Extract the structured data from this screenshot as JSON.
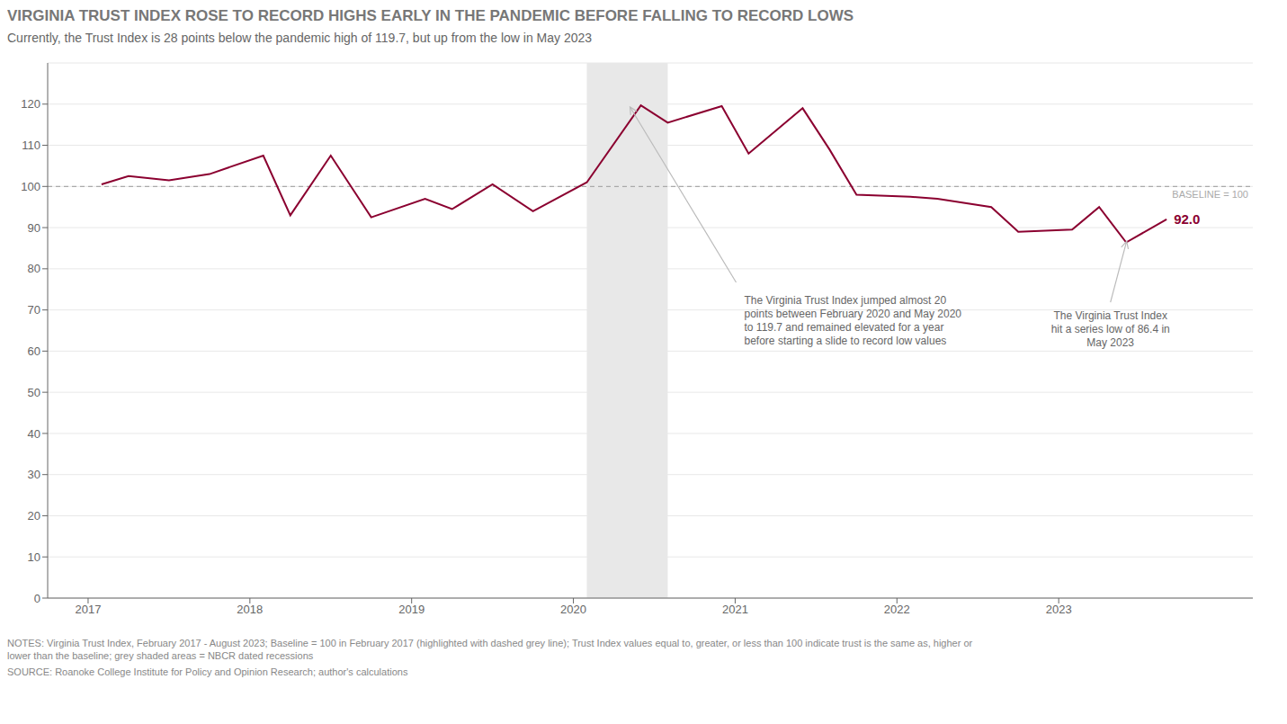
{
  "chart_data": {
    "type": "line",
    "title": "VIRGINIA TRUST INDEX ROSE TO RECORD HIGHS EARLY IN THE PANDEMIC BEFORE FALLING TO RECORD LOWS",
    "subtitle": "Currently, the Trust Index is 28 points below the pandemic high of 119.7, but up from the low in May 2023",
    "x": [
      2017.083,
      2017.25,
      2017.5,
      2017.75,
      2018.083,
      2018.25,
      2018.5,
      2018.75,
      2019.083,
      2019.25,
      2019.5,
      2019.75,
      2020.083,
      2020.417,
      2020.583,
      2020.917,
      2021.083,
      2021.417,
      2021.583,
      2021.75,
      2022.083,
      2022.25,
      2022.583,
      2022.75,
      2023.083,
      2023.25,
      2023.417,
      2023.667
    ],
    "values": [
      100.5,
      102.5,
      101.5,
      103.0,
      107.5,
      93.0,
      107.5,
      92.5,
      97.0,
      94.5,
      100.5,
      94.0,
      101.0,
      119.7,
      115.5,
      119.5,
      108.0,
      119.0,
      109.0,
      98.0,
      97.5,
      97.0,
      95.0,
      89.0,
      89.5,
      95.0,
      86.4,
      92.0
    ],
    "color": "#8B0030",
    "xlim": [
      2016.75,
      2024.2
    ],
    "xticks": [
      2017,
      2018,
      2019,
      2020,
      2021,
      2022,
      2023
    ],
    "ylim": [
      0,
      130
    ],
    "yticks": [
      0,
      10,
      20,
      30,
      40,
      50,
      60,
      70,
      80,
      90,
      100,
      110,
      120
    ],
    "grid": true,
    "reference_lines": [
      {
        "y": 100,
        "label": "BASELINE = 100",
        "color": "#aaaaaa",
        "line_style": "dashed"
      }
    ],
    "shaded_ranges": [
      {
        "x": [
          2020.083,
          2020.583
        ],
        "color": "#e8e8e8"
      }
    ],
    "annotations": [
      {
        "text": [
          "The Virginia Trust Index jumped almost 20",
          "points between February 2020 and May 2020",
          "to 119.7 and remained elevated for a year",
          "before starting a slide to record low values"
        ],
        "x": 2020.35,
        "y": 119.3
      },
      {
        "text": [
          "The Virginia Trust Index",
          "hit a series low of 86.4 in",
          "May 2023"
        ],
        "x": 2023.42,
        "y": 86.7
      },
      {
        "text": [
          "92.0"
        ],
        "x": 2023.667,
        "y": 92.0
      }
    ],
    "notes": [
      "NOTES: Virginia Trust Index, February 2017 - August 2023; Baseline = 100 in February 2017 (highlighted with dashed grey line); Trust Index values equal to, greater, or less than 100 indicate trust is the same as, higher or",
      "lower than the baseline; grey shaded areas = NBCR dated recessions"
    ],
    "source": "SOURCE: Roanoke College Institute for Policy and Opinion Research; author's calculations"
  }
}
